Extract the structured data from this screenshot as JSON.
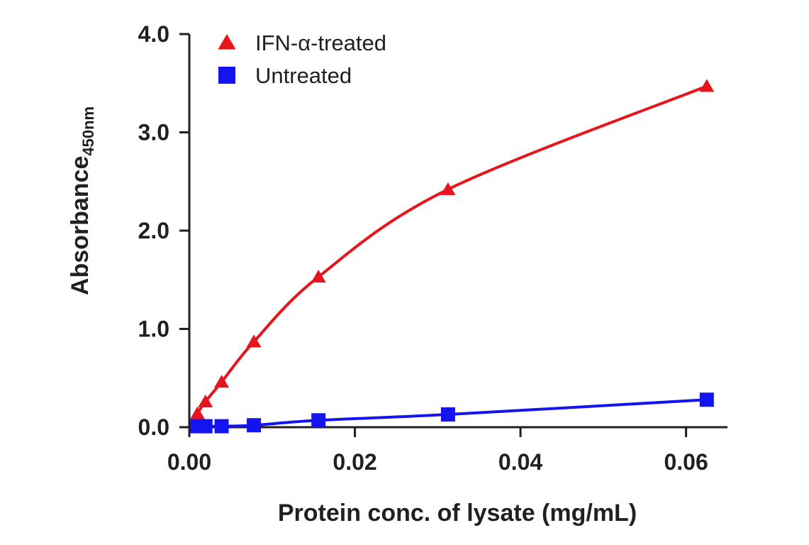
{
  "chart_data": {
    "type": "line",
    "xlabel": "Protein conc. of lysate (mg/mL)",
    "ylabel": "Absorbance",
    "ylabel_subscript": "450nm",
    "xlim": [
      0,
      0.065
    ],
    "ylim": [
      0,
      4.0
    ],
    "x_ticks": [
      0.0,
      0.02,
      0.04,
      0.06
    ],
    "x_tick_labels": [
      "0.00",
      "0.02",
      "0.04",
      "0.06"
    ],
    "y_ticks": [
      0.0,
      1.0,
      2.0,
      3.0,
      4.0
    ],
    "y_tick_labels": [
      "0.0",
      "1.0",
      "2.0",
      "3.0",
      "4.0"
    ],
    "grid": false,
    "legend_position": "top-left",
    "series": [
      {
        "name": "IFN-α-treated",
        "marker": "triangle",
        "color": "#e8141b",
        "x": [
          0.00098,
          0.00195,
          0.0039,
          0.0078,
          0.0156,
          0.03125,
          0.0625
        ],
        "y": [
          0.14,
          0.26,
          0.46,
          0.87,
          1.53,
          2.42,
          3.47
        ]
      },
      {
        "name": "Untreated",
        "marker": "square",
        "color": "#1414f0",
        "x": [
          0.00098,
          0.00195,
          0.0039,
          0.0078,
          0.0156,
          0.03125,
          0.0625
        ],
        "y": [
          0.01,
          0.01,
          0.01,
          0.02,
          0.07,
          0.13,
          0.28
        ]
      }
    ]
  }
}
